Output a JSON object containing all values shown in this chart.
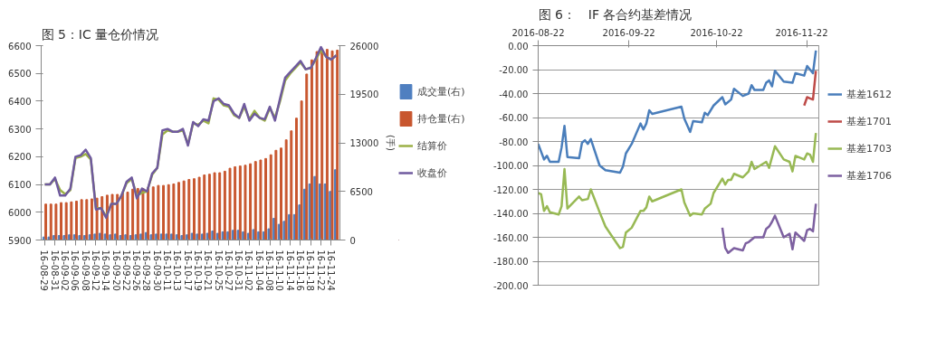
{
  "chart_data": [
    {
      "type": "bar",
      "title": "图 5：IC 量仓价情况",
      "y2label": "(手)",
      "categories": [
        "16-08-29",
        null,
        "16-08-31",
        null,
        "16-09-02",
        null,
        "16-09-06",
        null,
        "16-09-08",
        null,
        "16-09-12",
        null,
        "16-09-14",
        null,
        "16-09-20",
        null,
        "16-09-22",
        null,
        "16-09-26",
        null,
        "16-09-28",
        null,
        "16-09-30",
        null,
        "16-10-11",
        null,
        "16-10-13",
        null,
        "16-10-17",
        null,
        "16-10-19",
        null,
        "16-10-21",
        null,
        "16-10-25",
        null,
        "16-10-27",
        null,
        "16-10-31",
        null,
        "16-11-02",
        null,
        "16-11-04",
        null,
        "16-11-08",
        null,
        "16-11-10",
        null,
        "16-11-14",
        null,
        "16-11-16",
        null,
        "16-11-18",
        null,
        "16-11-22",
        null,
        "16-11-24",
        null
      ],
      "ylim": [
        5900,
        6600
      ],
      "yticks": [
        5900,
        6000,
        6100,
        6200,
        6300,
        6400,
        6500,
        6600
      ],
      "y2lim": [
        0,
        26000
      ],
      "y2ticks": [
        0,
        6500,
        13000,
        19500,
        26000
      ],
      "grid": false,
      "legend": "right",
      "series": [
        {
          "name": "成交量(右)",
          "axis": "y2",
          "color": "#4f7fc0",
          "values": [
            400,
            400,
            600,
            600,
            600,
            700,
            700,
            600,
            600,
            700,
            800,
            900,
            800,
            700,
            800,
            600,
            700,
            600,
            700,
            800,
            1000,
            700,
            800,
            800,
            800,
            800,
            700,
            600,
            700,
            900,
            800,
            800,
            900,
            1200,
            900,
            1100,
            1100,
            1300,
            1300,
            1100,
            900,
            1400,
            1100,
            1100,
            1500,
            2900,
            2100,
            2500,
            3400,
            3400,
            4700,
            6800,
            7500,
            8500,
            7500,
            7500,
            6500,
            9400
          ]
        },
        {
          "name": "持仓量(右)",
          "axis": "y2",
          "color": "#c8562e",
          "values": [
            4800,
            4800,
            4800,
            5000,
            5000,
            5100,
            5200,
            5400,
            5400,
            5500,
            5600,
            5800,
            6000,
            6100,
            6100,
            6300,
            6400,
            6800,
            6900,
            6900,
            7000,
            7100,
            7300,
            7300,
            7400,
            7500,
            7700,
            7900,
            8100,
            8200,
            8400,
            8700,
            8800,
            9000,
            9000,
            9200,
            9600,
            9800,
            9900,
            10000,
            10200,
            10500,
            10700,
            10900,
            11400,
            12000,
            12300,
            13400,
            14600,
            16300,
            18600,
            22200,
            24100,
            25200,
            25500,
            25500,
            25300,
            25400
          ]
        },
        {
          "name": "结算价",
          "type": "line",
          "color": "#9bb146",
          "values": [
            6100,
            6100,
            6120,
            6080,
            6065,
            6080,
            6195,
            6200,
            6210,
            6190,
            6015,
            6015,
            5985,
            6030,
            6030,
            6060,
            6105,
            6120,
            6060,
            6070,
            6075,
            6135,
            6160,
            6280,
            6295,
            6290,
            6290,
            6295,
            6245,
            6320,
            6315,
            6330,
            6320,
            6410,
            6405,
            6385,
            6380,
            6350,
            6340,
            6380,
            6335,
            6365,
            6340,
            6330,
            6375,
            6340,
            6400,
            6475,
            6500,
            6520,
            6540,
            6515,
            6520,
            6550,
            6585,
            6560,
            6550,
            6565
          ]
        },
        {
          "name": "收盘价",
          "type": "line",
          "color": "#6f5a9e",
          "values": [
            6100,
            6100,
            6125,
            6060,
            6060,
            6085,
            6200,
            6205,
            6225,
            6195,
            6010,
            6015,
            5980,
            6030,
            6030,
            6060,
            6110,
            6125,
            6050,
            6085,
            6075,
            6140,
            6160,
            6295,
            6300,
            6290,
            6290,
            6300,
            6240,
            6325,
            6310,
            6335,
            6330,
            6400,
            6410,
            6390,
            6385,
            6355,
            6340,
            6390,
            6330,
            6355,
            6340,
            6335,
            6380,
            6330,
            6410,
            6485,
            6505,
            6525,
            6545,
            6515,
            6520,
            6555,
            6595,
            6560,
            6550,
            6565
          ]
        }
      ]
    },
    {
      "type": "line",
      "title": "图 6：　IF 各合约基差情况",
      "xlim": [
        "2016-08-22",
        "2016-11-26"
      ],
      "xticks": [
        "2016-08-22",
        "2016-09-22",
        "2016-10-22",
        "2016-11-22"
      ],
      "ylim": [
        -200,
        0
      ],
      "yticks": [
        {
          "value": 0,
          "label": "0.00"
        },
        {
          "value": -20,
          "label": "-20.00"
        },
        {
          "value": -40,
          "label": "-40.00"
        },
        {
          "value": -60,
          "label": "-60.00"
        },
        {
          "value": -80,
          "label": "-80.00"
        },
        {
          "value": -100,
          "label": "-100.00"
        },
        {
          "value": -120,
          "label": "-120.00"
        },
        {
          "value": -140,
          "label": "-140.00"
        },
        {
          "value": -160,
          "label": "-160.00"
        },
        {
          "value": -180,
          "label": "-180.00"
        },
        {
          "value": -200,
          "label": "-200.00"
        }
      ],
      "grid": "y",
      "legend": "right",
      "series": [
        {
          "name": "基差1612",
          "color": "#4a7ebb",
          "x": [
            "2016-08-22",
            "2016-08-24",
            "2016-08-25",
            "2016-08-26",
            "2016-08-29",
            "2016-08-30",
            "2016-08-31",
            "2016-09-01",
            "2016-09-05",
            "2016-09-06",
            "2016-09-07",
            "2016-09-08",
            "2016-09-09",
            "2016-09-12",
            "2016-09-14",
            "2016-09-19",
            "2016-09-20",
            "2016-09-21",
            "2016-09-23",
            "2016-09-26",
            "2016-09-27",
            "2016-09-28",
            "2016-09-29",
            "2016-09-30",
            "2016-10-10",
            "2016-10-11",
            "2016-10-13",
            "2016-10-14",
            "2016-10-17",
            "2016-10-18",
            "2016-10-19",
            "2016-10-21",
            "2016-10-24",
            "2016-10-25",
            "2016-10-27",
            "2016-10-28",
            "2016-10-31",
            "2016-11-02",
            "2016-11-03",
            "2016-11-04",
            "2016-11-07",
            "2016-11-08",
            "2016-11-09",
            "2016-11-10",
            "2016-11-11",
            "2016-11-14",
            "2016-11-17",
            "2016-11-18",
            "2016-11-21",
            "2016-11-22",
            "2016-11-24",
            "2016-11-25"
          ],
          "values": [
            -82,
            -95,
            -92,
            -97,
            -97,
            -85,
            -67,
            -93,
            -94,
            -81,
            -79,
            -82,
            -78,
            -100,
            -104,
            -106,
            -101,
            -90,
            -82,
            -65,
            -70,
            -65,
            -54,
            -57,
            -51,
            -61,
            -72,
            -63,
            -64,
            -56,
            -58,
            -50,
            -43,
            -49,
            -45,
            -36,
            -42,
            -40,
            -33,
            -37,
            -37,
            -31,
            -29,
            -34,
            -21,
            -30,
            -31,
            -23,
            -25,
            -17,
            -23,
            -4
          ]
        },
        {
          "name": "基差1701",
          "color": "#be4b48",
          "x": [
            "2016-11-21",
            "2016-11-22",
            "2016-11-23",
            "2016-11-24",
            "2016-11-25"
          ],
          "values": [
            -50,
            -43,
            -44,
            -45,
            -21
          ]
        },
        {
          "name": "基差1703",
          "color": "#98b954",
          "x": [
            "2016-08-22",
            "2016-08-23",
            "2016-08-24",
            "2016-08-25",
            "2016-08-26",
            "2016-08-29",
            "2016-08-30",
            "2016-08-31",
            "2016-09-01",
            "2016-09-05",
            "2016-09-06",
            "2016-09-08",
            "2016-09-09",
            "2016-09-12",
            "2016-09-14",
            "2016-09-19",
            "2016-09-20",
            "2016-09-21",
            "2016-09-23",
            "2016-09-26",
            "2016-09-27",
            "2016-09-28",
            "2016-09-29",
            "2016-09-30",
            "2016-10-10",
            "2016-10-11",
            "2016-10-13",
            "2016-10-14",
            "2016-10-17",
            "2016-10-18",
            "2016-10-20",
            "2016-10-21",
            "2016-10-24",
            "2016-10-25",
            "2016-10-26",
            "2016-10-27",
            "2016-10-28",
            "2016-10-31",
            "2016-11-02",
            "2016-11-03",
            "2016-11-04",
            "2016-11-08",
            "2016-11-09",
            "2016-11-11",
            "2016-11-14",
            "2016-11-16",
            "2016-11-17",
            "2016-11-18",
            "2016-11-21",
            "2016-11-22",
            "2016-11-23",
            "2016-11-24",
            "2016-11-25"
          ],
          "values": [
            -123,
            -124,
            -138,
            -134,
            -139,
            -141,
            -134,
            -103,
            -136,
            -126,
            -129,
            -128,
            -120,
            -139,
            -151,
            -169,
            -168,
            -156,
            -152,
            -138,
            -138,
            -135,
            -126,
            -130,
            -120,
            -131,
            -142,
            -140,
            -141,
            -136,
            -132,
            -123,
            -111,
            -116,
            -112,
            -112,
            -107,
            -110,
            -105,
            -97,
            -103,
            -97,
            -102,
            -84,
            -95,
            -97,
            -105,
            -92,
            -95,
            -90,
            -91,
            -97,
            -73
          ]
        },
        {
          "name": "基差1706",
          "color": "#7d60a0",
          "x": [
            "2016-10-24",
            "2016-10-25",
            "2016-10-26",
            "2016-10-28",
            "2016-10-31",
            "2016-11-01",
            "2016-11-02",
            "2016-11-04",
            "2016-11-07",
            "2016-11-08",
            "2016-11-09",
            "2016-11-10",
            "2016-11-11",
            "2016-11-14",
            "2016-11-16",
            "2016-11-17",
            "2016-11-18",
            "2016-11-21",
            "2016-11-22",
            "2016-11-23",
            "2016-11-24",
            "2016-11-25"
          ],
          "values": [
            -152,
            -169,
            -173,
            -169,
            -171,
            -165,
            -164,
            -160,
            -160,
            -153,
            -151,
            -147,
            -142,
            -160,
            -157,
            -170,
            -156,
            -163,
            -154,
            -153,
            -155,
            -132
          ]
        }
      ]
    }
  ]
}
